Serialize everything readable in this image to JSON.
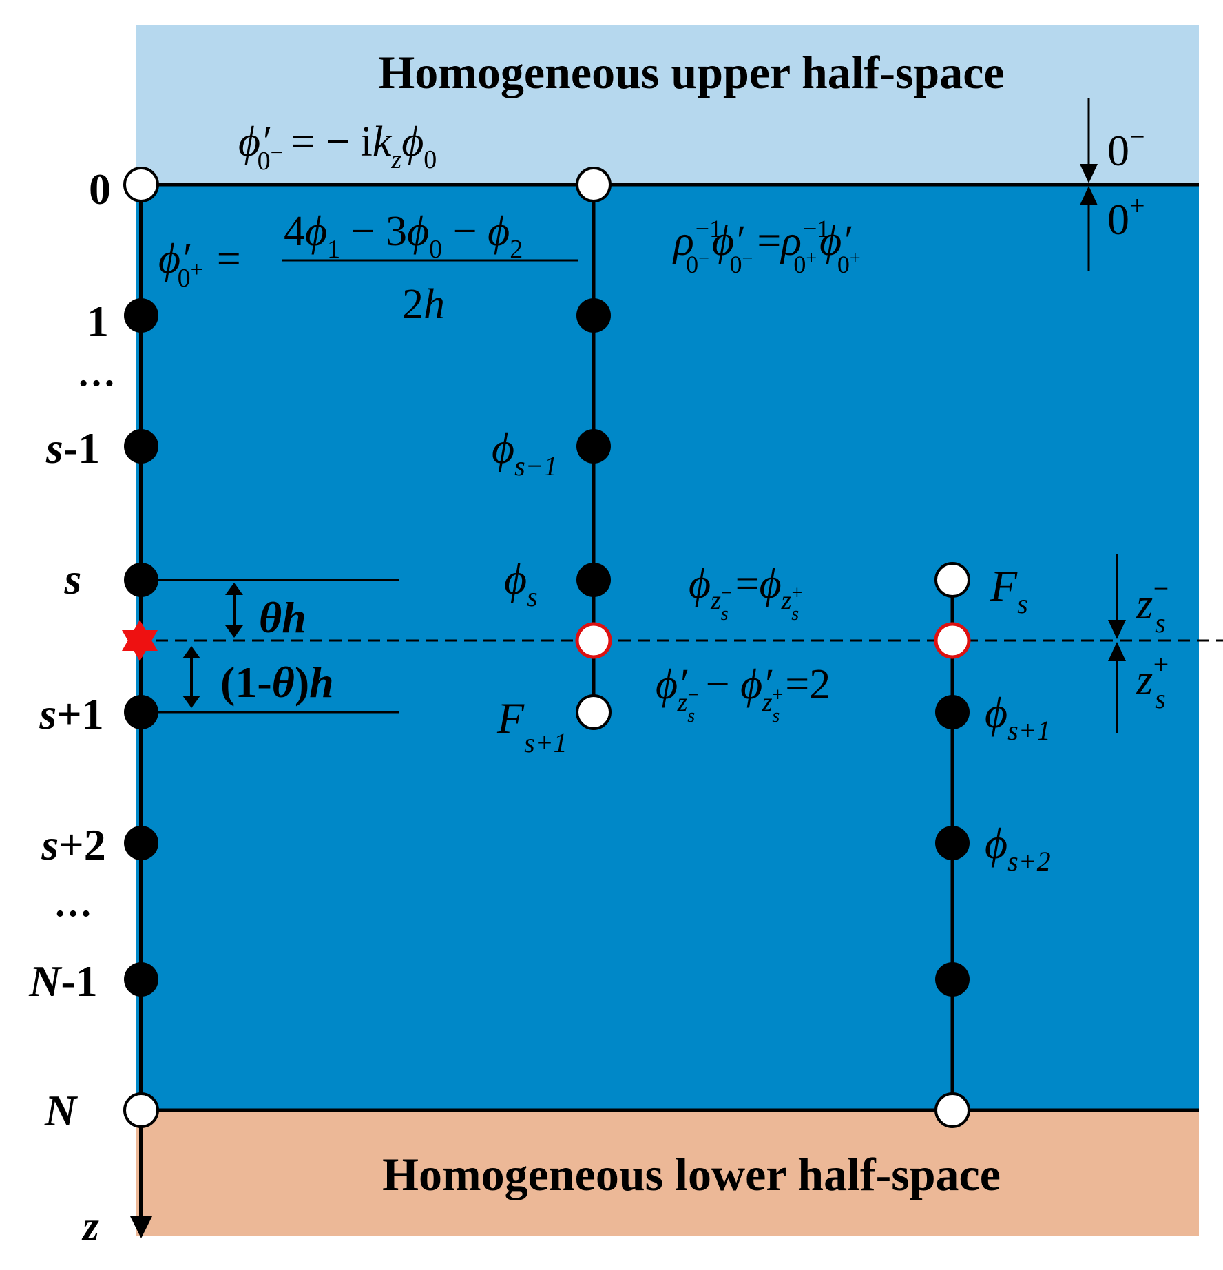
{
  "regions": {
    "upper": {
      "label": "Homogeneous upper half-space",
      "color": "#b6d8ee"
    },
    "layer": {
      "color": "#0088c8"
    },
    "lower": {
      "label": "Homogeneous lower half-space",
      "color": "#ecb897"
    }
  },
  "colors": {
    "source_star": "#ee1111",
    "interface_node_stroke": "#dd1111"
  },
  "axis": {
    "label": "z"
  },
  "grid_labels": {
    "n0": "0",
    "n1": "1",
    "dots_top": "…",
    "sm1": "s",
    "sm1_suffix": "-1",
    "s": "s",
    "sp1": "s",
    "sp1_suffix": "+1",
    "sp2": "s",
    "sp2_suffix": "+2",
    "dots_bottom": "…",
    "nm1": "N",
    "nm1_suffix": "-1",
    "n": "N"
  },
  "spacing_labels": {
    "theta_h_theta": "θ",
    "theta_h_h": "h",
    "one_minus": "(1-",
    "one_minus_theta": "θ",
    "one_minus_close": ")",
    "one_minus_h": "h"
  },
  "interface_labels": {
    "zero_minus": "0",
    "zero_minus_sup": "−",
    "zero_plus": "0",
    "zero_plus_sup": "+",
    "zs_minus_base": "z",
    "zs_minus_sub": "s",
    "zs_minus_sup": "−",
    "zs_plus_base": "z",
    "zs_plus_sub": "s",
    "zs_plus_sup": "+"
  },
  "column_labels": {
    "phi": "ϕ",
    "sub_s_minus_1": "s−1",
    "sub_s": "s",
    "sub_s_plus_1": "s+1",
    "sub_s_plus_2": "s+2",
    "F": "F"
  },
  "equations": {
    "upper_bc": {
      "lhs": "ϕ′",
      "sub": "0",
      "sup": "−",
      "rhs": "= − i",
      "k": "k",
      "k_sub": "z",
      "phi": "ϕ",
      "phi_sub": "0"
    },
    "fd_derivative": {
      "lhs": "ϕ′",
      "sub": "0",
      "sup": "+",
      "eq": "=",
      "num_4": "4",
      "phi": "ϕ",
      "s1": "1",
      "minus3": " − 3",
      "s0": "0",
      "minus": " − ",
      "s2": "2",
      "den_2": "2",
      "den_h": "h"
    },
    "density_continuity": {
      "rho": "ρ",
      "exp": "−1",
      "phi_prime": "ϕ′",
      "sub0": "0",
      "minus_sup": "−",
      "plus_sup": "+",
      "eq": "="
    },
    "source_continuity": {
      "phi": "ϕ",
      "z": "z",
      "s": "s",
      "minus_sup": "−",
      "plus_sup": "+",
      "eq": "="
    },
    "source_jump": {
      "phi_prime": "ϕ′",
      "z": "z",
      "s": "s",
      "minus_sup": "−",
      "plus_sup": "+",
      "minus": " − ",
      "rhs": "=2"
    }
  }
}
